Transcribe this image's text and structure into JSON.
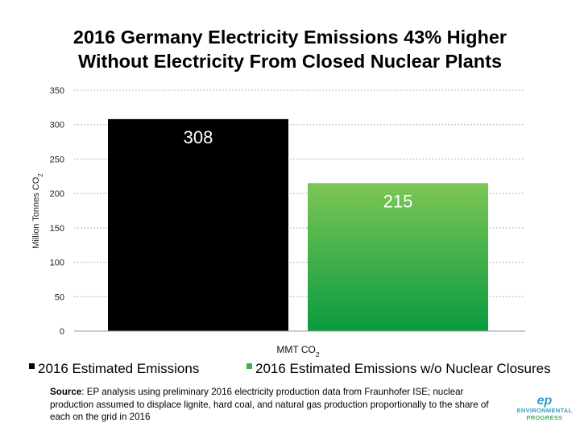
{
  "title_line1": "2016 Germany Electricity Emissions 43% Higher",
  "title_line2": "Without Electricity From Closed Nuclear Plants",
  "chart_data": {
    "type": "bar",
    "categories": [
      "2016 Estimated Emissions",
      "2016 Estimated Emissions w/o Nuclear Closures"
    ],
    "values": [
      308,
      215
    ],
    "data_labels": [
      "308",
      "215"
    ],
    "colors": [
      "#000000",
      "#43b04a"
    ],
    "ylim": [
      0,
      350
    ],
    "yticks": [
      "0",
      "50",
      "100",
      "150",
      "200",
      "250",
      "300",
      "350"
    ],
    "ytick_values": [
      0,
      50,
      100,
      150,
      200,
      250,
      300,
      350
    ],
    "ylabel": "Million Tonnes CO",
    "ylabel_sub": "2",
    "xlabel": "MMT CO",
    "xlabel_sub": "2",
    "grid": true,
    "legend_position": "bottom",
    "legend": [
      {
        "label": "2016 Estimated Emissions",
        "color": "#000000"
      },
      {
        "label": "2016 Estimated Emissions w/o Nuclear Closures",
        "color": "#43b04a"
      }
    ]
  },
  "source": {
    "label": "Source",
    "text": ": EP analysis using preliminary 2016 electricity production data from Fraunhofer ISE; nuclear production assumed to displace lignite, hard coal, and natural gas production proportionally to the share of each on the grid in 2016"
  },
  "logo": {
    "mark": "ep",
    "line1": "ENVIRONMENTAL",
    "line2": "PROGRESS"
  }
}
